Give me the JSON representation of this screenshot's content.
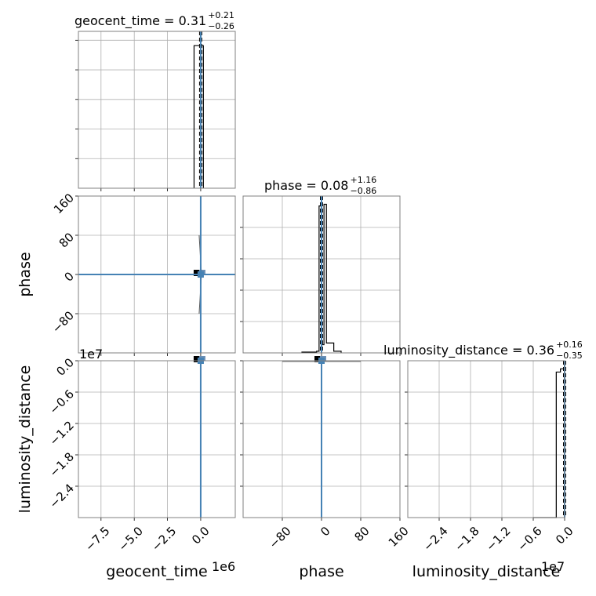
{
  "chart_data": {
    "type": "corner",
    "parameters": [
      {
        "key": "geocent_time",
        "label": "geocent_time",
        "title_name": "geocent_time",
        "median": "0.31",
        "plus": "+0.21",
        "minus": "−0.26",
        "offset": "1e6",
        "range": [
          -9.2,
          2.6
        ],
        "ticks": [
          -7.5,
          -5.0,
          -2.5,
          0.0
        ],
        "tick_labels": [
          "−7.5",
          "−5.0",
          "−2.5",
          "0.0"
        ],
        "truth": 0.0
      },
      {
        "key": "phase",
        "label": "phase",
        "title_name": "phase",
        "median": "0.08",
        "plus": "+1.16",
        "minus": "−0.86",
        "offset": "",
        "range": [
          -160,
          160
        ],
        "ticks": [
          -80,
          0,
          80,
          160
        ],
        "tick_labels": [
          "−80",
          "0",
          "80",
          "160"
        ],
        "truth": 0.0
      },
      {
        "key": "luminosity_distance",
        "label": "luminosity_distance",
        "title_name": "luminosity_distance",
        "median": "0.36",
        "plus": "+0.16",
        "minus": "−0.35",
        "offset": "1e7",
        "range": [
          -3.0,
          0.0
        ],
        "ticks": [
          -2.4,
          -1.8,
          -1.2,
          -0.6,
          0.0
        ],
        "tick_labels": [
          "−2.4",
          "−1.8",
          "−1.2",
          "−0.6",
          "0.0"
        ],
        "truth": 0.0
      }
    ],
    "histograms": [
      {
        "param": "geocent_time",
        "bins": [
          -0.5,
          0.0,
          0.2
        ],
        "counts": [
          1.0,
          1.0
        ],
        "ylim": [
          0,
          1.1
        ]
      },
      {
        "param": "phase",
        "bins": [
          -40,
          -10,
          -5,
          0,
          5,
          10,
          25,
          40
        ],
        "counts": [
          0.005,
          0.01,
          0.89,
          0.05,
          0.9,
          0.06,
          0.01
        ],
        "ylim": [
          0,
          0.95
        ]
      },
      {
        "param": "luminosity_distance",
        "bins": [
          -0.6,
          -0.28,
          -0.16,
          -0.08,
          0.0
        ],
        "counts": [
          0.0,
          0.0,
          0.9,
          0.92
        ],
        "ylim": [
          0,
          0.97
        ]
      }
    ],
    "grid": true
  }
}
